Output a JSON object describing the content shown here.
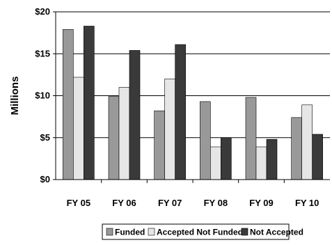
{
  "chart_data": {
    "type": "bar",
    "title": "",
    "xlabel": "",
    "ylabel": "Millions",
    "ylim": [
      0,
      20
    ],
    "yticks": [
      0,
      5,
      10,
      15,
      20
    ],
    "ytick_labels": [
      "$0",
      "$5",
      "$10",
      "$15",
      "$20"
    ],
    "grid": "horizontal",
    "legend_position": "bottom",
    "categories": [
      "FY 05",
      "FY 06",
      "FY 07",
      "FY 08",
      "FY 09",
      "FY 10"
    ],
    "series": [
      {
        "name": "Funded",
        "color": "#999999",
        "values": [
          17.9,
          9.9,
          8.2,
          9.3,
          9.8,
          7.4
        ]
      },
      {
        "name": "Accepted Not Funded",
        "color": "#e6e6e6",
        "values": [
          12.2,
          11.0,
          12.0,
          3.9,
          3.9,
          8.9
        ]
      },
      {
        "name": "Not Accepted",
        "color": "#3a3a3a",
        "values": [
          18.3,
          15.4,
          16.1,
          5.0,
          4.8,
          5.4
        ]
      }
    ]
  }
}
